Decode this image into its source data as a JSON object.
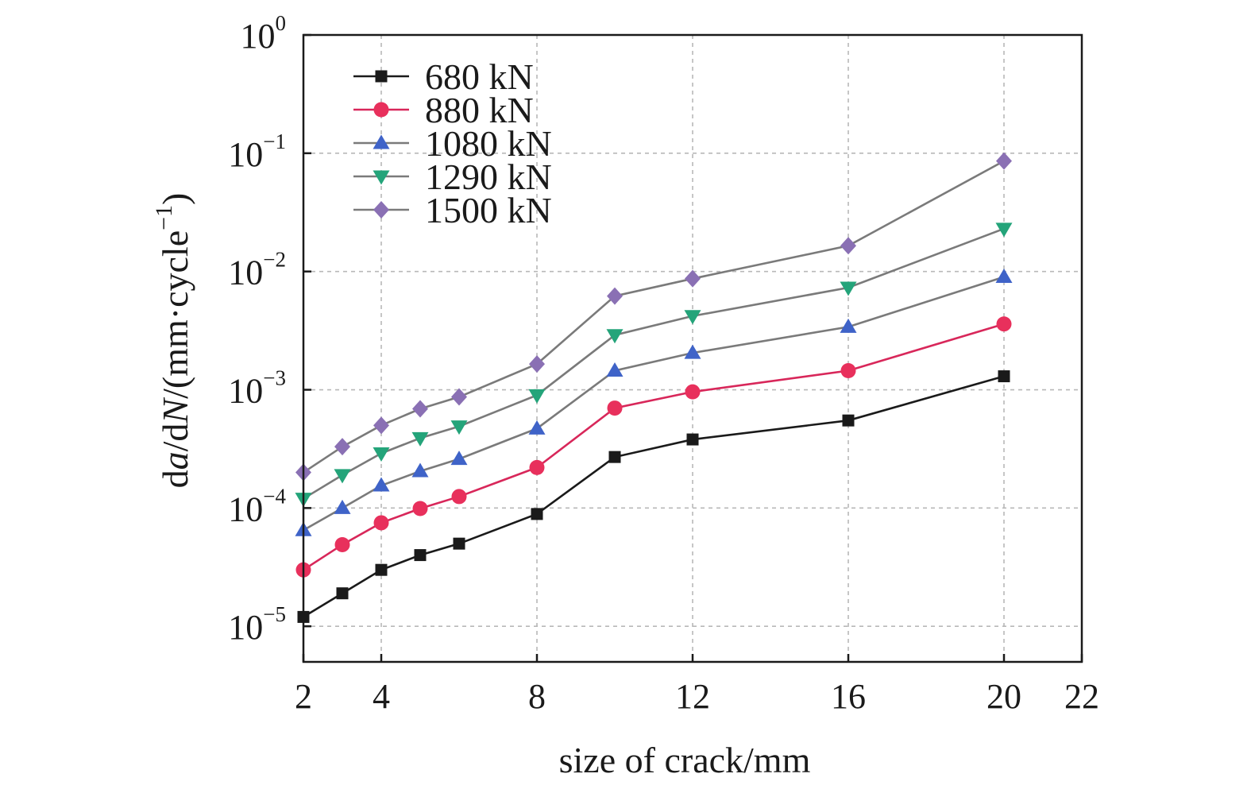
{
  "chart_data": {
    "type": "line",
    "xlabel": "size of crack/mm",
    "ylabel_parts": [
      "d",
      "a",
      "/d",
      "N",
      "/(mm·cycle",
      "−1",
      ")"
    ],
    "xlim": [
      2,
      22
    ],
    "ylim": [
      5e-06,
      1
    ],
    "yscale": "log",
    "x_ticks": [
      2,
      4,
      8,
      12,
      16,
      20,
      22
    ],
    "y_ticks": [
      {
        "value": 1e-05,
        "base": "10",
        "exp": "−5"
      },
      {
        "value": 0.0001,
        "base": "10",
        "exp": "−4"
      },
      {
        "value": 0.001,
        "base": "10",
        "exp": "−3"
      },
      {
        "value": 0.01,
        "base": "10",
        "exp": "−2"
      },
      {
        "value": 0.1,
        "base": "10",
        "exp": "−1"
      },
      {
        "value": 1,
        "base": "10",
        "exp": "0"
      }
    ],
    "grid": true,
    "legend_position": "top-left",
    "x": [
      2,
      3,
      4,
      5,
      6,
      8,
      10,
      12,
      16,
      20
    ],
    "series": [
      {
        "name": "680 kN",
        "marker": "square",
        "color": "#1a1a1a",
        "values": [
          1.2e-05,
          1.9e-05,
          3e-05,
          4e-05,
          5e-05,
          8.9e-05,
          0.00027,
          0.00038,
          0.00055,
          0.0013
        ]
      },
      {
        "name": "880 kN",
        "marker": "circle",
        "color": "#e8305c",
        "values": [
          3e-05,
          4.9e-05,
          7.5e-05,
          9.9e-05,
          0.000125,
          0.00022,
          0.0007,
          0.00096,
          0.00145,
          0.0036
        ]
      },
      {
        "name": "1080 kN",
        "marker": "triangle-up",
        "color": "#3f63c8",
        "values": [
          6.5e-05,
          0.0001,
          0.000155,
          0.000205,
          0.00026,
          0.00047,
          0.00145,
          0.00205,
          0.0034,
          0.009
        ]
      },
      {
        "name": "1290 kN",
        "marker": "triangle-down",
        "color": "#24a47a",
        "values": [
          0.00012,
          0.00019,
          0.00029,
          0.00039,
          0.00049,
          0.0009,
          0.0029,
          0.0042,
          0.0073,
          0.023
        ]
      },
      {
        "name": "1500 kN",
        "marker": "diamond",
        "color": "#8a70b4",
        "values": [
          0.0002,
          0.00033,
          0.0005,
          0.00069,
          0.00087,
          0.00165,
          0.0062,
          0.0087,
          0.0165,
          0.086
        ]
      }
    ]
  },
  "colors": {
    "line_680": "#1a1a1a",
    "line_880": "#d8275a",
    "line_other": "#7a7a7a",
    "grid": "#b8b8b8"
  }
}
